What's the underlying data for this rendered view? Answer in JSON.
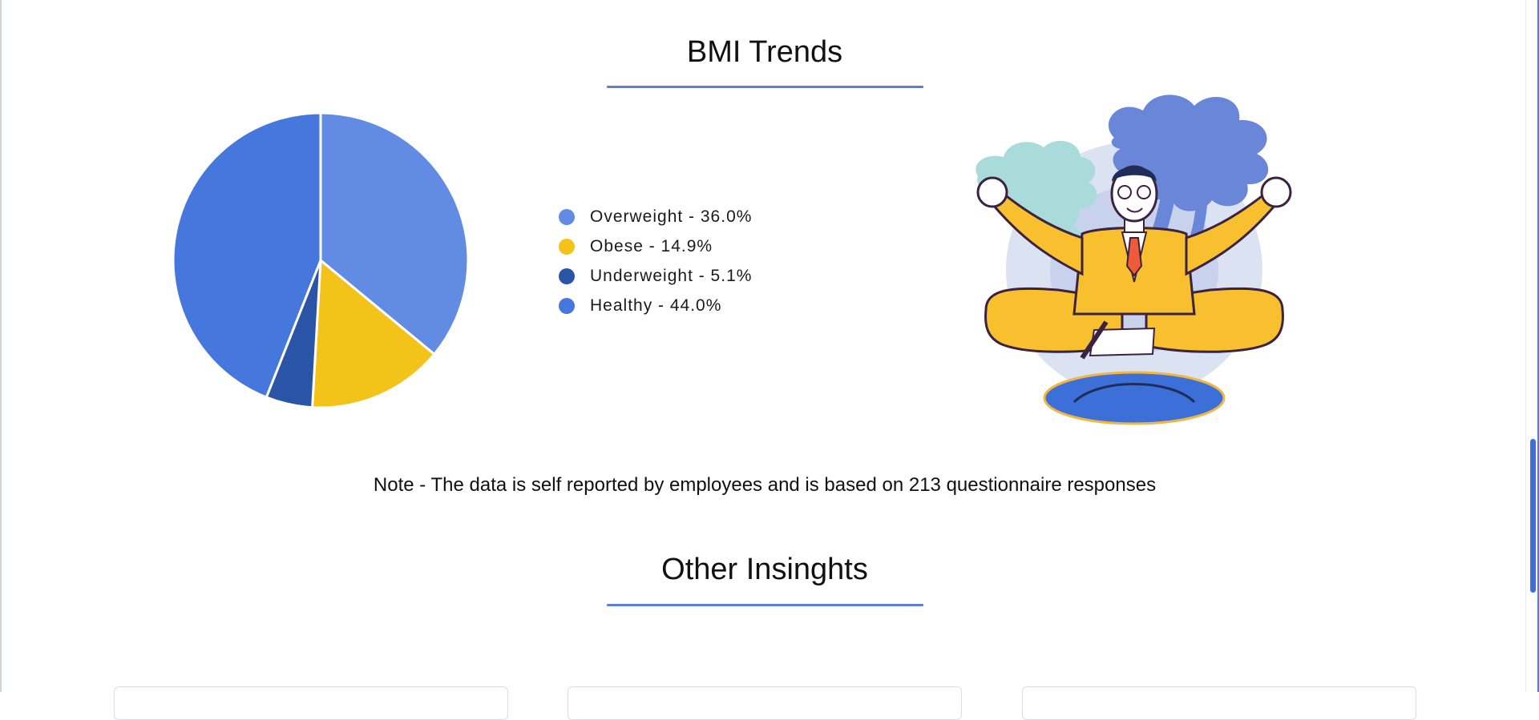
{
  "sections": {
    "bmi": {
      "title": "BMI Trends",
      "note": "Note - The data is self reported by employees and is based on 213 questionnaire responses"
    },
    "other": {
      "title": "Other Insinghts"
    }
  },
  "illustration": {
    "icon": "meditating-man-illustration"
  },
  "colors": {
    "overweight": "#628ce3",
    "obese": "#f4c31a",
    "underweight": "#2a55a6",
    "healthy": "#4677dc",
    "accent": "#5b7fd3"
  },
  "chart_data": {
    "type": "pie",
    "title": "",
    "slices": [
      {
        "name": "Overweight",
        "value": 36.0,
        "color": "#628ce3",
        "legend_label": "Overweight - 36.0%"
      },
      {
        "name": "Obese",
        "value": 14.9,
        "color": "#f4c31a",
        "legend_label": "Obese - 14.9%"
      },
      {
        "name": "Underweight",
        "value": 5.1,
        "color": "#2a55a6",
        "legend_label": "Underweight - 5.1%"
      },
      {
        "name": "Healthy",
        "value": 44.0,
        "color": "#4677dc",
        "legend_label": "Healthy - 44.0%"
      }
    ],
    "legend_placement": "right"
  }
}
